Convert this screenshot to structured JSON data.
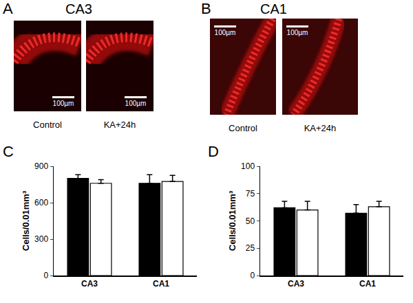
{
  "panels": [
    {
      "label": "A",
      "title": "CA3",
      "images": [
        {
          "caption": "Control",
          "scale_bar": "100µm"
        },
        {
          "caption": "KA+24h",
          "scale_bar": "100µm"
        }
      ]
    },
    {
      "label": "B",
      "title": "CA1",
      "images": [
        {
          "caption": "Control",
          "scale_bar": "100µm"
        },
        {
          "caption": "KA+24h",
          "scale_bar": "100µm"
        }
      ]
    }
  ],
  "chart_data": [
    {
      "panel": "C",
      "type": "bar",
      "categories": [
        "CA3",
        "CA1"
      ],
      "ylabel": "Cells/0.01mm³",
      "series": [
        {
          "color": "#000000",
          "values": [
            800,
            760
          ],
          "errors": [
            30,
            70
          ]
        },
        {
          "color": "#ffffff",
          "values": [
            760,
            775
          ],
          "errors": [
            30,
            50
          ]
        }
      ],
      "ylim": [
        0,
        900
      ],
      "yticks": [
        0,
        300,
        600,
        900
      ],
      "grid": false
    },
    {
      "panel": "D",
      "type": "bar",
      "categories": [
        "CA3",
        "CA1"
      ],
      "ylabel": "Cells/0.01mm³",
      "series": [
        {
          "color": "#000000",
          "values": [
            62,
            57
          ],
          "errors": [
            6,
            8
          ]
        },
        {
          "color": "#ffffff",
          "values": [
            60,
            63
          ],
          "errors": [
            8,
            5
          ]
        }
      ],
      "ylim": [
        0,
        100
      ],
      "yticks": [
        0,
        25,
        50,
        75,
        100
      ],
      "grid": false
    }
  ]
}
